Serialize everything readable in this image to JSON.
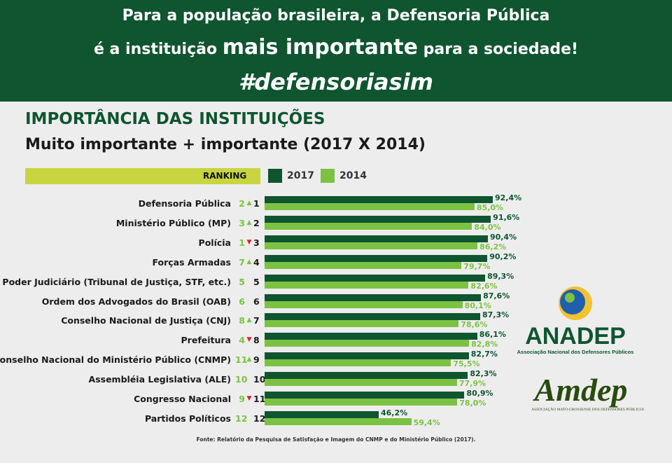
{
  "banner": {
    "line1": "Para a população brasileira, a Defensoria Pública",
    "line2_pre": "é a instituição",
    "line2_big": "mais importante",
    "line2_post": "para a sociedade!",
    "hashtag": "#defensoriasim"
  },
  "colors": {
    "dark_green": "#0f5530",
    "light_green": "#7cc242",
    "ranking_bar": "#c8d540",
    "up_arrow": "#7cc242",
    "down_arrow": "#d6232a"
  },
  "chart_data": {
    "type": "bar",
    "title": "IMPORTÂNCIA DAS INSTITUIÇÕES",
    "subtitle": "Muito importante + importante (2017 X 2014)",
    "ranking_label": "RANKING",
    "legend": [
      "2017",
      "2014"
    ],
    "categories": [
      "Defensoria Pública",
      "Ministério Público (MP)",
      "Polícia",
      "Forças Armadas",
      "Poder Judiciário (Tribunal de Justiça, STF, etc.)",
      "Ordem dos Advogados do Brasil (OAB)",
      "Conselho Nacional de Justiça (CNJ)",
      "Prefeitura",
      "Conselho Nacional do Ministério Público (CNMP)",
      "Assembléia Legislativa (ALE)",
      "Congresso Nacional",
      "Partidos Políticos"
    ],
    "series": [
      {
        "name": "2017",
        "values": [
          92.4,
          91.6,
          90.4,
          90.2,
          89.3,
          87.6,
          87.3,
          86.1,
          82.7,
          82.3,
          80.9,
          46.2
        ],
        "labels": [
          "92,4%",
          "91,6%",
          "90,4%",
          "90,2%",
          "89,3%",
          "87,6%",
          "87,3%",
          "86,1%",
          "82,7%",
          "82,3%",
          "80,9%",
          "46,2%"
        ]
      },
      {
        "name": "2014",
        "values": [
          85.0,
          84.0,
          86.2,
          79.7,
          82.6,
          80.1,
          78.6,
          82.8,
          75.5,
          77.9,
          78.0,
          59.4
        ],
        "labels": [
          "85,0%",
          "84,0%",
          "86,2%",
          "79,7%",
          "82,6%",
          "80,1%",
          "78,6%",
          "82,8%",
          "75,5%",
          "77,9%",
          "78,0%",
          "59,4%"
        ]
      }
    ],
    "rank_2014": [
      "2",
      "3",
      "1",
      "7",
      "5",
      "6",
      "8",
      "4",
      "11",
      "10",
      "9",
      "12"
    ],
    "rank_2017": [
      "1",
      "2",
      "3",
      "4",
      "5",
      "6",
      "7",
      "8",
      "9",
      "10",
      "11",
      "12"
    ],
    "rank_change": [
      "up",
      "up",
      "down",
      "up",
      "",
      "",
      "up",
      "down",
      "up",
      "",
      "down",
      ""
    ],
    "source": "Fonte: Relatório da Pesquisa de Satisfação e Imagem do CNMP e do Ministério Público (2017)."
  },
  "logos": {
    "anadep_name": "ANADEP",
    "anadep_sub": "Associação Nacional dos Defensores Públicos",
    "amdep_name": "Amdep",
    "amdep_sub": "ASSOCIAÇÃO MATO-GROSSENSE DOS DEFENSORES PÚBLICOS"
  }
}
